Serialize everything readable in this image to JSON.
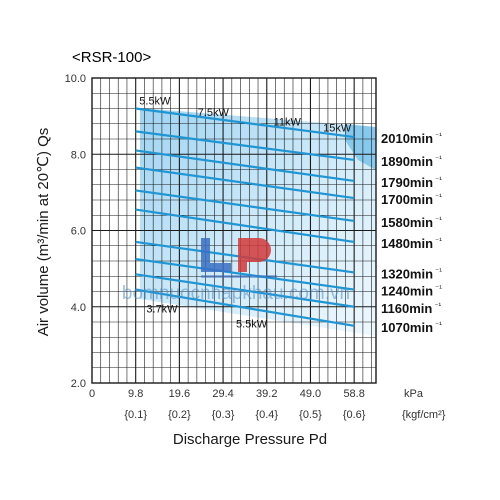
{
  "chart_data": {
    "type": "line",
    "title": "<RSR-100>",
    "xlabel": "Discharge Pressure Pd",
    "ylabel": "Air volume (m³/min at 20℃) Qs",
    "xlim": [
      0,
      63.7
    ],
    "ylim": [
      2.0,
      10.0
    ],
    "x_ticks": [
      0,
      9.8,
      19.6,
      29.4,
      39.2,
      49.0,
      58.8
    ],
    "x_tick_labels": [
      "0",
      "9.8",
      "19.6",
      "29.4",
      "39.2",
      "49.0",
      "58.8"
    ],
    "x_unit": "kPa",
    "x_secondary_labels": [
      "{0.1}",
      "{0.2}",
      "{0.3}",
      "{0.4}",
      "{0.5}",
      "{0.6}"
    ],
    "x_secondary_unit": "{kgf/cm²}",
    "y_ticks": [
      2.0,
      4.0,
      6.0,
      8.0,
      10.0
    ],
    "y_tick_labels": [
      "2.0",
      "4.0",
      "6.0",
      "8.0",
      "10.0"
    ],
    "grid": true,
    "speed_unit": "min⁻¹",
    "series": [
      {
        "name": "2010",
        "x": [
          9.8,
          58.8
        ],
        "y": [
          9.2,
          8.45
        ]
      },
      {
        "name": "1890",
        "x": [
          9.8,
          58.8
        ],
        "y": [
          8.6,
          7.85
        ]
      },
      {
        "name": "1790",
        "x": [
          9.8,
          58.8
        ],
        "y": [
          8.1,
          7.3
        ]
      },
      {
        "name": "1700",
        "x": [
          9.8,
          58.8
        ],
        "y": [
          7.65,
          6.85
        ]
      },
      {
        "name": "1580",
        "x": [
          9.8,
          58.8
        ],
        "y": [
          7.05,
          6.25
        ]
      },
      {
        "name": "1480",
        "x": [
          9.8,
          58.8
        ],
        "y": [
          6.55,
          5.7
        ]
      },
      {
        "name": "1320",
        "x": [
          9.8,
          58.8
        ],
        "y": [
          5.7,
          4.9
        ]
      },
      {
        "name": "1240",
        "x": [
          9.8,
          58.8
        ],
        "y": [
          5.25,
          4.45
        ]
      },
      {
        "name": "1160",
        "x": [
          9.8,
          58.8
        ],
        "y": [
          4.85,
          4.0
        ]
      },
      {
        "name": "1070",
        "x": [
          9.8,
          58.8
        ],
        "y": [
          4.45,
          3.5
        ]
      }
    ],
    "motor_power_labels": [
      {
        "text": "5.5kW",
        "x": 14.1,
        "y": 9.3
      },
      {
        "text": "7.5kW",
        "x": 27.2,
        "y": 9.0
      },
      {
        "text": "11kW",
        "x": 43.8,
        "y": 8.75
      },
      {
        "text": "15kW",
        "x": 55.0,
        "y": 8.6
      },
      {
        "text": "3.7kW",
        "x": 15.7,
        "y": 3.85
      },
      {
        "text": "5.5kW",
        "x": 35.8,
        "y": 3.45
      }
    ],
    "watermark": "bomnuocnhapkhau.com.vn"
  }
}
